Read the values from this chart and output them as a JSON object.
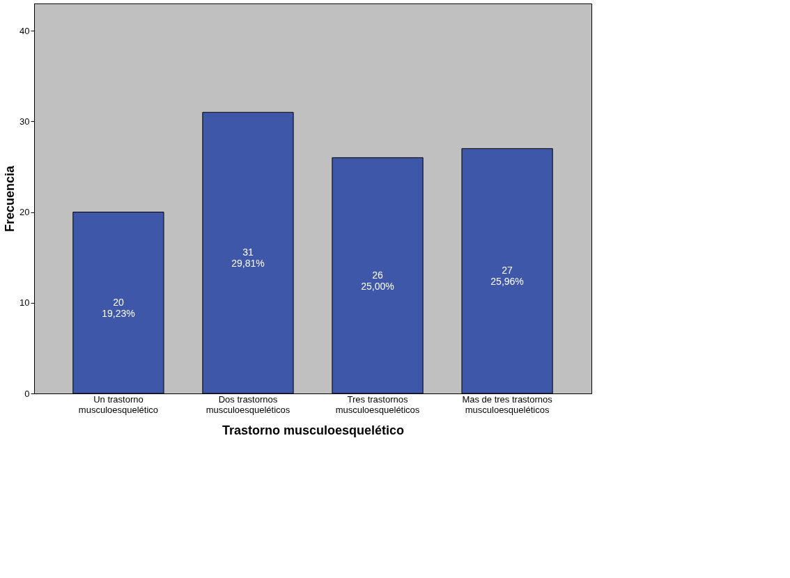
{
  "chart_data": {
    "type": "bar",
    "xlabel": "Trastorno musculoesquelético",
    "ylabel": "Frecuencia",
    "categories": [
      "Un trastorno musculoesquelético",
      "Dos trastornos musculoesqueléticos",
      "Tres trastornos musculoesqueléticos",
      "Mas de tres trastornos musculoesqueléticos"
    ],
    "values": [
      20,
      31,
      26,
      27
    ],
    "value_labels": [
      "20\n19,23%",
      "31\n29,81%",
      "26\n25,00%",
      "27\n25,96%"
    ],
    "color": "#3f57a8",
    "ylim": [
      0,
      43
    ],
    "yticks": [
      0,
      10,
      20,
      30,
      40
    ],
    "grid": false
  }
}
